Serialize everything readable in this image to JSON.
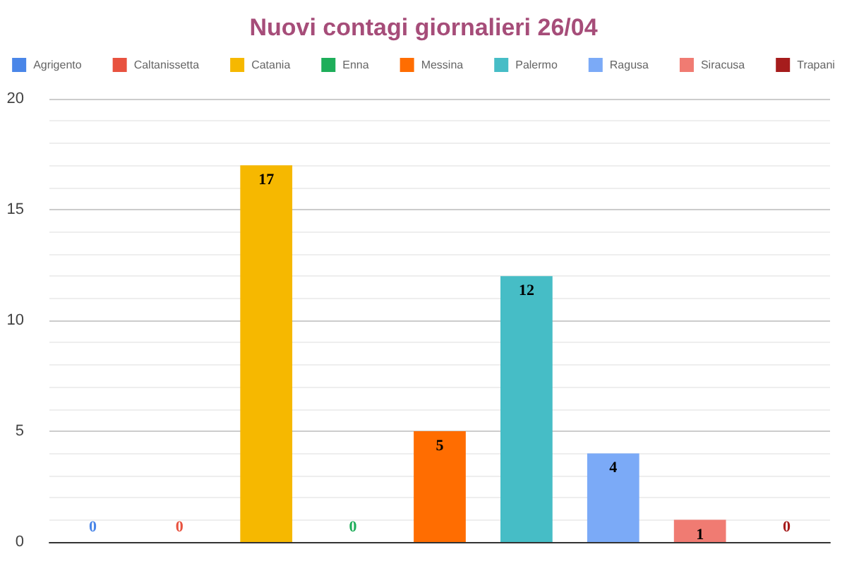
{
  "chart_data": {
    "type": "bar",
    "title": "Nuovi contagi giornalieri 26/04",
    "categories": [
      null,
      null,
      null,
      null,
      null,
      null,
      null,
      null,
      null
    ],
    "series": [
      {
        "name": "Agrigento",
        "color": "#4a86e8",
        "values": [
          0,
          null,
          null,
          null,
          null,
          null,
          null,
          null,
          null
        ]
      },
      {
        "name": "Caltanissetta",
        "color": "#e8523f",
        "values": [
          null,
          0,
          null,
          null,
          null,
          null,
          null,
          null,
          null
        ]
      },
      {
        "name": "Catania",
        "color": "#f6b800",
        "values": [
          null,
          null,
          17,
          null,
          null,
          null,
          null,
          null,
          null
        ]
      },
      {
        "name": "Enna",
        "color": "#1eae5a",
        "values": [
          null,
          null,
          null,
          0,
          null,
          null,
          null,
          null,
          null
        ]
      },
      {
        "name": "Messina",
        "color": "#ff6d01",
        "values": [
          null,
          null,
          null,
          null,
          5,
          null,
          null,
          null,
          null
        ]
      },
      {
        "name": "Palermo",
        "color": "#46bdc6",
        "values": [
          null,
          null,
          null,
          null,
          null,
          12,
          null,
          null,
          null
        ]
      },
      {
        "name": "Ragusa",
        "color": "#7baaf7",
        "values": [
          null,
          null,
          null,
          null,
          null,
          null,
          4,
          null,
          null
        ]
      },
      {
        "name": "Siracusa",
        "color": "#f07b72",
        "values": [
          null,
          null,
          null,
          null,
          null,
          null,
          null,
          1,
          null
        ]
      },
      {
        "name": "Trapani",
        "color": "#a61c1c",
        "values": [
          null,
          null,
          null,
          null,
          null,
          null,
          null,
          null,
          0
        ]
      }
    ],
    "ylim": [
      0,
      20
    ],
    "yticks": [
      0,
      5,
      10,
      15,
      20
    ],
    "grid": "y",
    "legend": "top",
    "data_labels": true
  }
}
